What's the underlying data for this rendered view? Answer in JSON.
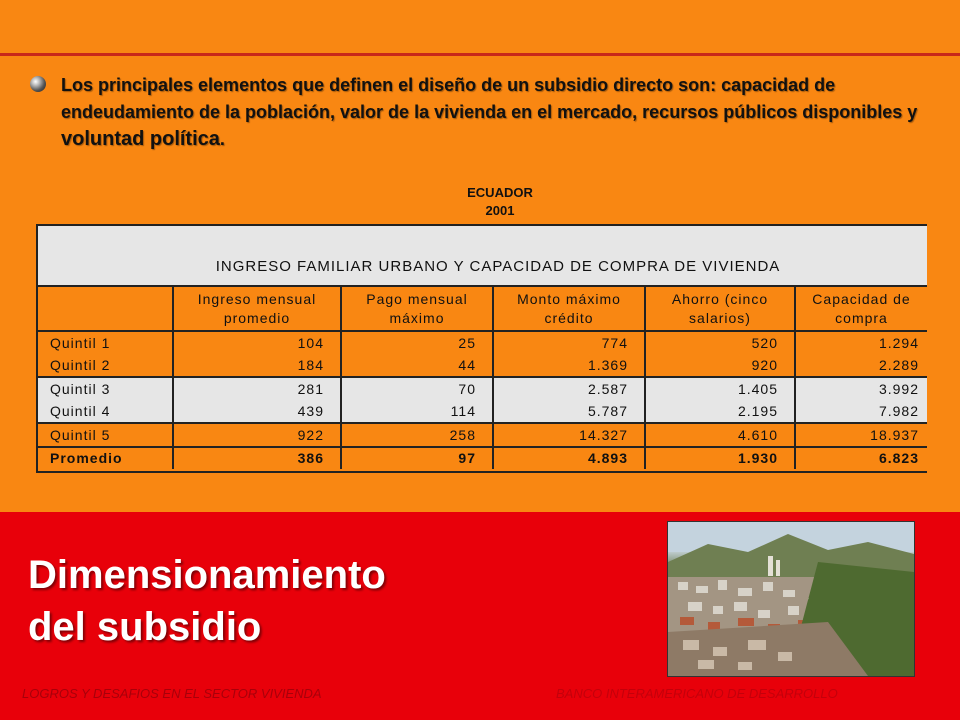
{
  "bullet": {
    "text_main": "Los principales elementos que definen el diseño de un subsidio directo son: capacidad de endeudamiento de la población, valor de la vivienda en el mercado, recursos públicos disponibles y ",
    "text_emph": "voluntad política",
    "text_end": "."
  },
  "chart_title": {
    "line1": "ECUADOR",
    "line2": "2001"
  },
  "table": {
    "title": "INGRESO FAMILIAR URBANO Y CAPACIDAD DE COMPRA DE VIVIENDA",
    "headers": [
      {
        "line1": "Ingreso mensual",
        "line2": "promedio"
      },
      {
        "line1": "Pago mensual",
        "line2": "máximo"
      },
      {
        "line1": "Monto máximo",
        "line2": "crédito"
      },
      {
        "line1": "Ahorro (cinco",
        "line2": "salarios)"
      },
      {
        "line1": "Capacidad de",
        "line2": "compra"
      }
    ],
    "rows": [
      {
        "name": "Quintil 1",
        "values": [
          "104",
          "25",
          "774",
          "520",
          "1.294"
        ]
      },
      {
        "name": "Quintil 2",
        "values": [
          "184",
          "44",
          "1.369",
          "920",
          "2.289"
        ]
      },
      {
        "name": "Quintil 3",
        "values": [
          "281",
          "70",
          "2.587",
          "1.405",
          "3.992"
        ]
      },
      {
        "name": "Quintil 4",
        "values": [
          "439",
          "114",
          "5.787",
          "2.195",
          "7.982"
        ]
      },
      {
        "name": "Quintil 5",
        "values": [
          "922",
          "258",
          "14.327",
          "4.610",
          "18.937"
        ]
      },
      {
        "name": "Promedio",
        "values": [
          "386",
          "97",
          "4.893",
          "1.930",
          "6.823"
        ]
      }
    ]
  },
  "slide_title": {
    "line1": "Dimensionamiento",
    "line2": "del subsidio"
  },
  "footer": {
    "left": "LOGROS  Y DESAFIOS  EN EL  SECTOR VIVIENDA",
    "right": "BANCO  INTERAMERICANO  DE DESARROLLO"
  },
  "colors": {
    "background": "#f98712",
    "band": "#e8000a",
    "row_gray": "#e6e6e6"
  }
}
